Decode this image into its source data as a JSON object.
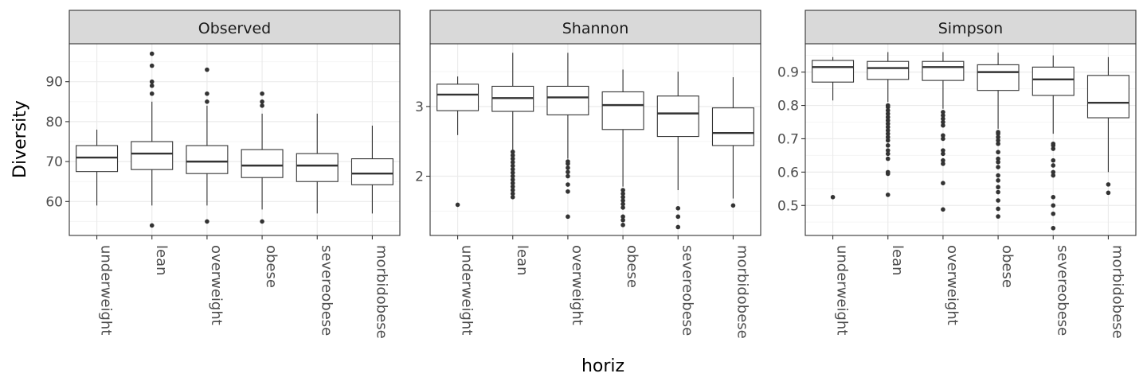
{
  "figure": {
    "xlabel": "horiz",
    "ylabel": "Diversity"
  },
  "chart_data": [
    {
      "type": "boxplot",
      "title": "Observed",
      "categories": [
        "underweight",
        "lean",
        "overweight",
        "obese",
        "severeobese",
        "morbidobese"
      ],
      "y_ticks": [
        60,
        70,
        80,
        90
      ],
      "ylim": [
        51.5,
        99.5
      ],
      "boxes": [
        {
          "category": "underweight",
          "min": 59,
          "q1": 67.5,
          "median": 71,
          "q3": 74,
          "max": 78,
          "outliers": []
        },
        {
          "category": "lean",
          "min": 59,
          "q1": 68,
          "median": 72,
          "q3": 75,
          "max": 85,
          "outliers": [
            54,
            87,
            89,
            90,
            94,
            97
          ]
        },
        {
          "category": "overweight",
          "min": 59,
          "q1": 67,
          "median": 70,
          "q3": 74,
          "max": 84,
          "outliers": [
            55,
            85,
            87,
            93
          ]
        },
        {
          "category": "obese",
          "min": 58,
          "q1": 66,
          "median": 69,
          "q3": 73,
          "max": 82,
          "outliers": [
            55,
            84,
            85,
            87
          ]
        },
        {
          "category": "severeobese",
          "min": 57,
          "q1": 65,
          "median": 69,
          "q3": 72,
          "max": 82,
          "outliers": []
        },
        {
          "category": "morbidobese",
          "min": 57,
          "q1": 64.2,
          "median": 67,
          "q3": 70.7,
          "max": 79,
          "outliers": []
        }
      ]
    },
    {
      "type": "boxplot",
      "title": "Shannon",
      "categories": [
        "underweight",
        "lean",
        "overweight",
        "obese",
        "severeobese",
        "morbidobese"
      ],
      "y_ticks": [
        2,
        3
      ],
      "ylim": [
        1.15,
        3.9
      ],
      "boxes": [
        {
          "category": "underweight",
          "min": 2.59,
          "q1": 2.94,
          "median": 3.17,
          "q3": 3.32,
          "max": 3.43,
          "outliers": [
            1.59
          ]
        },
        {
          "category": "lean",
          "min": 2.38,
          "q1": 2.93,
          "median": 3.12,
          "q3": 3.29,
          "max": 3.77,
          "outliers": [
            1.7,
            1.75,
            1.8,
            1.85,
            1.9,
            1.95,
            2.0,
            2.05,
            2.1,
            2.15,
            2.2,
            2.25,
            2.3,
            2.35
          ]
        },
        {
          "category": "overweight",
          "min": 2.25,
          "q1": 2.88,
          "median": 3.13,
          "q3": 3.29,
          "max": 3.77,
          "outliers": [
            1.42,
            1.78,
            1.88,
            2.0,
            2.06,
            2.12,
            2.18,
            2.21
          ]
        },
        {
          "category": "obese",
          "min": 1.85,
          "q1": 2.67,
          "median": 3.02,
          "q3": 3.21,
          "max": 3.53,
          "outliers": [
            1.3,
            1.37,
            1.42,
            1.55,
            1.6,
            1.65,
            1.7,
            1.75,
            1.8
          ]
        },
        {
          "category": "severeobese",
          "min": 1.8,
          "q1": 2.57,
          "median": 2.9,
          "q3": 3.15,
          "max": 3.5,
          "outliers": [
            1.27,
            1.42,
            1.54
          ]
        },
        {
          "category": "morbidobese",
          "min": 1.68,
          "q1": 2.44,
          "median": 2.62,
          "q3": 2.98,
          "max": 3.42,
          "outliers": [
            1.58
          ]
        }
      ]
    },
    {
      "type": "boxplot",
      "title": "Simpson",
      "categories": [
        "underweight",
        "lean",
        "overweight",
        "obese",
        "severeobese",
        "morbidobese"
      ],
      "y_ticks": [
        0.5,
        0.6,
        0.7,
        0.8,
        0.9
      ],
      "ylim": [
        0.41,
        0.985
      ],
      "boxes": [
        {
          "category": "underweight",
          "min": 0.815,
          "q1": 0.87,
          "median": 0.915,
          "q3": 0.935,
          "max": 0.945,
          "outliers": [
            0.525
          ]
        },
        {
          "category": "lean",
          "min": 0.81,
          "q1": 0.878,
          "median": 0.912,
          "q3": 0.932,
          "max": 0.96,
          "outliers": [
            0.532,
            0.595,
            0.6,
            0.64,
            0.655,
            0.665,
            0.68,
            0.695,
            0.705,
            0.715,
            0.725,
            0.735,
            0.745,
            0.755,
            0.765,
            0.775,
            0.785,
            0.795,
            0.8
          ]
        },
        {
          "category": "overweight",
          "min": 0.79,
          "q1": 0.875,
          "median": 0.915,
          "q3": 0.932,
          "max": 0.96,
          "outliers": [
            0.488,
            0.567,
            0.625,
            0.635,
            0.655,
            0.665,
            0.7,
            0.71,
            0.74,
            0.75,
            0.76,
            0.77,
            0.78
          ]
        },
        {
          "category": "obese",
          "min": 0.73,
          "q1": 0.845,
          "median": 0.9,
          "q3": 0.922,
          "max": 0.958,
          "outliers": [
            0.467,
            0.49,
            0.515,
            0.54,
            0.555,
            0.575,
            0.59,
            0.615,
            0.63,
            0.64,
            0.66,
            0.685,
            0.695,
            0.705,
            0.715,
            0.72
          ]
        },
        {
          "category": "severeobese",
          "min": 0.715,
          "q1": 0.83,
          "median": 0.878,
          "q3": 0.915,
          "max": 0.95,
          "outliers": [
            0.432,
            0.475,
            0.5,
            0.525,
            0.59,
            0.6,
            0.62,
            0.635,
            0.67,
            0.68,
            0.685
          ]
        },
        {
          "category": "morbidobese",
          "min": 0.6,
          "q1": 0.763,
          "median": 0.808,
          "q3": 0.89,
          "max": 0.945,
          "outliers": [
            0.538,
            0.563
          ]
        }
      ]
    }
  ],
  "colors": {
    "strip_bg": "#d9d9d9",
    "frame": "#333333",
    "grid_major": "#ebebeb",
    "grid_minor": "#f5f5f5",
    "box_line": "#333333",
    "tick_label": "#4d4d4d",
    "title_text": "#1a1a1a"
  }
}
